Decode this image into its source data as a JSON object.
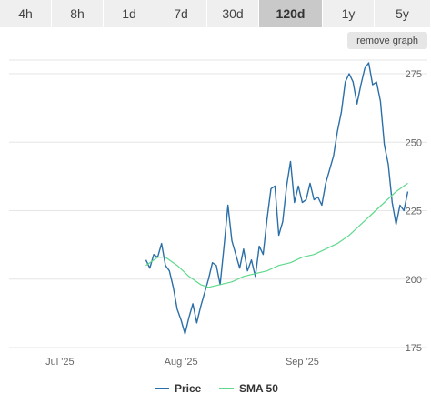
{
  "tabs": [
    {
      "label": "4h"
    },
    {
      "label": "8h"
    },
    {
      "label": "1d"
    },
    {
      "label": "7d"
    },
    {
      "label": "30d"
    },
    {
      "label": "120d",
      "active": true
    },
    {
      "label": "1y"
    },
    {
      "label": "5y"
    }
  ],
  "remove_graph_label": "remove graph",
  "colors": {
    "price": "#2b6fa8",
    "sma": "#5fd98d",
    "tab_bg": "#efefef",
    "tab_active_bg": "#c9c9c9"
  },
  "chart_data": {
    "type": "line",
    "ylim": [
      175,
      280
    ],
    "yticks": [
      175,
      200,
      225,
      250,
      275
    ],
    "x_domain": [
      "2025-06-18",
      "2025-10-03"
    ],
    "xticks": [
      {
        "label": "Jul '25",
        "date": "2025-07-01"
      },
      {
        "label": "Aug '25",
        "date": "2025-08-01"
      },
      {
        "label": "Sep '25",
        "date": "2025-09-01"
      }
    ],
    "grid": true,
    "legend_position": "bottom-center",
    "series": [
      {
        "name": "Price",
        "points": [
          [
            "2025-07-23",
            207
          ],
          [
            "2025-07-24",
            204
          ],
          [
            "2025-07-25",
            209
          ],
          [
            "2025-07-26",
            208
          ],
          [
            "2025-07-27",
            213
          ],
          [
            "2025-07-28",
            205
          ],
          [
            "2025-07-29",
            203
          ],
          [
            "2025-07-30",
            197
          ],
          [
            "2025-07-31",
            189
          ],
          [
            "2025-08-01",
            185
          ],
          [
            "2025-08-02",
            180
          ],
          [
            "2025-08-03",
            186
          ],
          [
            "2025-08-04",
            191
          ],
          [
            "2025-08-05",
            184
          ],
          [
            "2025-08-06",
            190
          ],
          [
            "2025-08-07",
            195
          ],
          [
            "2025-08-08",
            200
          ],
          [
            "2025-08-09",
            206
          ],
          [
            "2025-08-10",
            205
          ],
          [
            "2025-08-11",
            198
          ],
          [
            "2025-08-12",
            212
          ],
          [
            "2025-08-13",
            227
          ],
          [
            "2025-08-14",
            214
          ],
          [
            "2025-08-15",
            209
          ],
          [
            "2025-08-16",
            204
          ],
          [
            "2025-08-17",
            211
          ],
          [
            "2025-08-18",
            203
          ],
          [
            "2025-08-19",
            207
          ],
          [
            "2025-08-20",
            201
          ],
          [
            "2025-08-21",
            212
          ],
          [
            "2025-08-22",
            209
          ],
          [
            "2025-08-23",
            222
          ],
          [
            "2025-08-24",
            233
          ],
          [
            "2025-08-25",
            234
          ],
          [
            "2025-08-26",
            216
          ],
          [
            "2025-08-27",
            221
          ],
          [
            "2025-08-28",
            234
          ],
          [
            "2025-08-29",
            243
          ],
          [
            "2025-08-30",
            228
          ],
          [
            "2025-08-31",
            234
          ],
          [
            "2025-09-01",
            228
          ],
          [
            "2025-09-02",
            229
          ],
          [
            "2025-09-03",
            235
          ],
          [
            "2025-09-04",
            229
          ],
          [
            "2025-09-05",
            230
          ],
          [
            "2025-09-06",
            227
          ],
          [
            "2025-09-07",
            235
          ],
          [
            "2025-09-08",
            240
          ],
          [
            "2025-09-09",
            245
          ],
          [
            "2025-09-10",
            254
          ],
          [
            "2025-09-11",
            261
          ],
          [
            "2025-09-12",
            272
          ],
          [
            "2025-09-13",
            275
          ],
          [
            "2025-09-14",
            272
          ],
          [
            "2025-09-15",
            264
          ],
          [
            "2025-09-16",
            271
          ],
          [
            "2025-09-17",
            277
          ],
          [
            "2025-09-18",
            279
          ],
          [
            "2025-09-19",
            271
          ],
          [
            "2025-09-20",
            272
          ],
          [
            "2025-09-21",
            265
          ],
          [
            "2025-09-22",
            249
          ],
          [
            "2025-09-23",
            242
          ],
          [
            "2025-09-24",
            228
          ],
          [
            "2025-09-25",
            220
          ],
          [
            "2025-09-26",
            227
          ],
          [
            "2025-09-27",
            225
          ],
          [
            "2025-09-28",
            232
          ]
        ]
      },
      {
        "name": "SMA 50",
        "points": [
          [
            "2025-07-23",
            205
          ],
          [
            "2025-07-26",
            208
          ],
          [
            "2025-07-28",
            208
          ],
          [
            "2025-07-31",
            205
          ],
          [
            "2025-08-03",
            201
          ],
          [
            "2025-08-06",
            198
          ],
          [
            "2025-08-08",
            197
          ],
          [
            "2025-08-11",
            198
          ],
          [
            "2025-08-14",
            199
          ],
          [
            "2025-08-17",
            201
          ],
          [
            "2025-08-20",
            202
          ],
          [
            "2025-08-23",
            203
          ],
          [
            "2025-08-26",
            205
          ],
          [
            "2025-08-29",
            206
          ],
          [
            "2025-09-01",
            208
          ],
          [
            "2025-09-04",
            209
          ],
          [
            "2025-09-07",
            211
          ],
          [
            "2025-09-10",
            213
          ],
          [
            "2025-09-13",
            216
          ],
          [
            "2025-09-16",
            220
          ],
          [
            "2025-09-19",
            224
          ],
          [
            "2025-09-22",
            228
          ],
          [
            "2025-09-25",
            232
          ],
          [
            "2025-09-28",
            235
          ]
        ]
      }
    ]
  }
}
